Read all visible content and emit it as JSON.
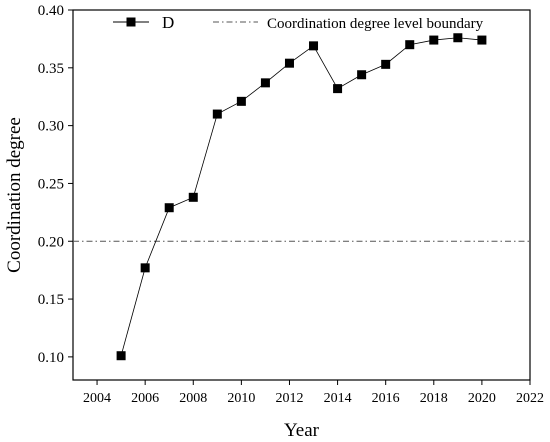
{
  "chart_data": {
    "type": "line",
    "xlabel": "Year",
    "ylabel": "Coordination degree",
    "xlim": [
      2003,
      2022
    ],
    "ylim": [
      0.08,
      0.4
    ],
    "xticks": [
      2004,
      2006,
      2008,
      2010,
      2012,
      2014,
      2016,
      2018,
      2020,
      2022
    ],
    "yticks": [
      0.1,
      0.15,
      0.2,
      0.25,
      0.3,
      0.35,
      0.4
    ],
    "series": [
      {
        "name": "D",
        "marker": "square",
        "color": "#000000",
        "x": [
          2005,
          2006,
          2007,
          2008,
          2009,
          2010,
          2011,
          2012,
          2013,
          2014,
          2015,
          2016,
          2017,
          2018,
          2019,
          2020
        ],
        "y": [
          0.101,
          0.177,
          0.229,
          0.238,
          0.31,
          0.321,
          0.337,
          0.354,
          0.369,
          0.332,
          0.344,
          0.353,
          0.37,
          0.374,
          0.376,
          0.374
        ]
      }
    ],
    "reference_line": {
      "name": "Coordination degree level boundary",
      "y": 0.2,
      "style": "dash-dot",
      "color": "#555555"
    },
    "legend_position": "top",
    "grid": false
  }
}
